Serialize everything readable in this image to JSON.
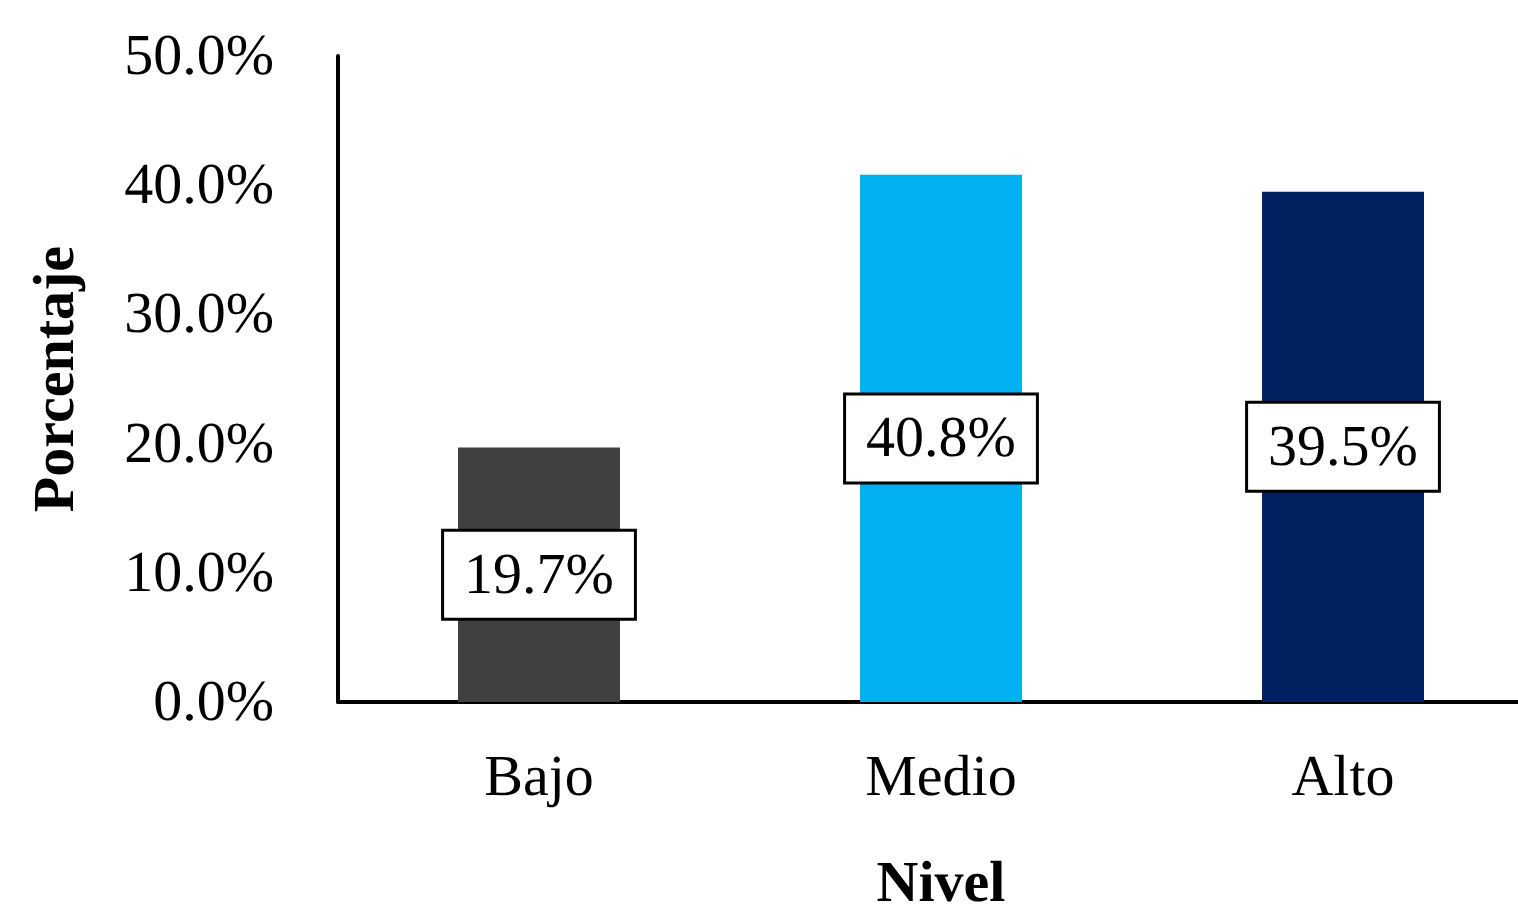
{
  "chart_data": {
    "type": "bar",
    "xlabel": "Nivel",
    "ylabel": "Porcentaje",
    "categories": [
      "Bajo",
      "Medio",
      "Alto"
    ],
    "values": [
      19.7,
      40.8,
      39.5
    ],
    "colors": [
      "#404040",
      "#00b0f0",
      "#002060"
    ],
    "value_labels": [
      "19.7%",
      "40.8%",
      "39.5%"
    ],
    "ylim": [
      0,
      50
    ],
    "yticks": [
      {
        "value": 0,
        "label": "0.0%"
      },
      {
        "value": 10,
        "label": "10.0%"
      },
      {
        "value": 20,
        "label": "20.0%"
      },
      {
        "value": 30,
        "label": "30.0%"
      },
      {
        "value": 40,
        "label": "40.0%"
      },
      {
        "value": 50,
        "label": "50.0%"
      }
    ],
    "grid": false
  }
}
